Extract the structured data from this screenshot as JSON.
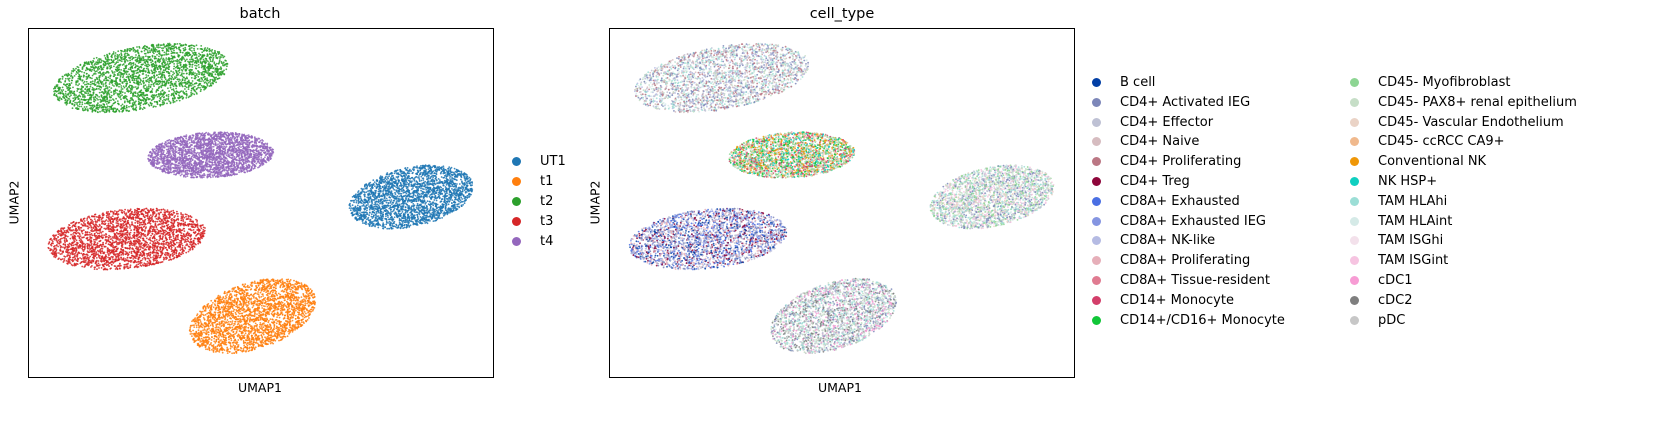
{
  "chart_data": [
    {
      "type": "scatter",
      "title": "batch",
      "xlabel": "UMAP1",
      "ylabel": "UMAP2",
      "grid": false,
      "legend_placement": "right",
      "legend": [
        {
          "label": "UT1",
          "color": "#1f77b4"
        },
        {
          "label": "t1",
          "color": "#ff7f0e"
        },
        {
          "label": "t2",
          "color": "#2ca02c"
        },
        {
          "label": "t3",
          "color": "#d62728"
        },
        {
          "label": "t4",
          "color": "#9467bd"
        }
      ],
      "clusters": [
        {
          "name": "t2",
          "color": "#2ca02c",
          "center": [
            0.24,
            0.14
          ],
          "radii": [
            0.19,
            0.09
          ],
          "angle": -10
        },
        {
          "name": "t4",
          "color": "#9467bd",
          "center": [
            0.39,
            0.36
          ],
          "radii": [
            0.135,
            0.065
          ],
          "angle": -3
        },
        {
          "name": "UT1",
          "color": "#1f77b4",
          "center": [
            0.82,
            0.48
          ],
          "radii": [
            0.135,
            0.085
          ],
          "angle": -12
        },
        {
          "name": "t3",
          "color": "#d62728",
          "center": [
            0.21,
            0.6
          ],
          "radii": [
            0.17,
            0.085
          ],
          "angle": -6
        },
        {
          "name": "t1",
          "color": "#ff7f0e",
          "center": [
            0.48,
            0.82
          ],
          "radii": [
            0.14,
            0.095
          ],
          "angle": -18
        }
      ]
    },
    {
      "type": "scatter",
      "title": "cell_type",
      "xlabel": "UMAP1",
      "ylabel": "UMAP2",
      "grid": false,
      "legend_placement": "right",
      "legend": [
        {
          "label": "B cell",
          "color": "#023fa5"
        },
        {
          "label": "CD4+ Activated IEG",
          "color": "#7d87b9"
        },
        {
          "label": "CD4+ Effector",
          "color": "#bec1d4"
        },
        {
          "label": "CD4+ Naive",
          "color": "#d6bcc0"
        },
        {
          "label": "CD4+ Proliferating",
          "color": "#bb7784"
        },
        {
          "label": "CD4+ Treg",
          "color": "#8e063b"
        },
        {
          "label": "CD8A+ Exhausted",
          "color": "#4a6fe3"
        },
        {
          "label": "CD8A+ Exhausted IEG",
          "color": "#8595e1"
        },
        {
          "label": "CD8A+ NK-like",
          "color": "#b5bbe3"
        },
        {
          "label": "CD8A+ Proliferating",
          "color": "#e6afb9"
        },
        {
          "label": "CD8A+ Tissue-resident",
          "color": "#e07b91"
        },
        {
          "label": "CD14+ Monocyte",
          "color": "#d33f6a"
        },
        {
          "label": "CD14+/CD16+ Monocyte",
          "color": "#11c638"
        },
        {
          "label": "CD45- Myofibroblast",
          "color": "#8dd593"
        },
        {
          "label": "CD45- PAX8+ renal epithelium",
          "color": "#c6dec7"
        },
        {
          "label": "CD45- Vascular Endothelium",
          "color": "#ead3c6"
        },
        {
          "label": "CD45- ccRCC CA9+",
          "color": "#f0b98d"
        },
        {
          "label": "Conventional NK",
          "color": "#ef9708"
        },
        {
          "label": "NK HSP+",
          "color": "#0fcfc0"
        },
        {
          "label": "TAM HLAhi",
          "color": "#9cded6"
        },
        {
          "label": "TAM HLAint",
          "color": "#d5eae7"
        },
        {
          "label": "TAM ISGhi",
          "color": "#f3e1eb"
        },
        {
          "label": "TAM ISGint",
          "color": "#f6c4e1"
        },
        {
          "label": "cDC1",
          "color": "#f79cd4"
        },
        {
          "label": "cDC2",
          "color": "#7f7f7f"
        },
        {
          "label": "pDC",
          "color": "#c7c7c7"
        }
      ],
      "clusters": [
        {
          "name": "cluster-top-left",
          "center": [
            0.24,
            0.14
          ],
          "radii": [
            0.19,
            0.09
          ],
          "angle": -10,
          "colors": [
            "#9cded6",
            "#d5eae7",
            "#bec1d4",
            "#7d87b9",
            "#bb7784",
            "#c6dec7",
            "#b5bbe3",
            "#d6bcc0"
          ]
        },
        {
          "name": "cluster-mid",
          "center": [
            0.39,
            0.36
          ],
          "radii": [
            0.135,
            0.065
          ],
          "angle": -3,
          "colors": [
            "#ef9708",
            "#8dd593",
            "#f0b98d",
            "#11c638",
            "#d33f6a",
            "#c6dec7",
            "#ead3c6",
            "#0fcfc0"
          ]
        },
        {
          "name": "cluster-right",
          "center": [
            0.82,
            0.48
          ],
          "radii": [
            0.135,
            0.085
          ],
          "angle": -12,
          "colors": [
            "#c6dec7",
            "#9cded6",
            "#8dd593",
            "#7d87b9",
            "#ead3c6",
            "#d5eae7",
            "#f6c4e1",
            "#bec1d4"
          ]
        },
        {
          "name": "cluster-left",
          "center": [
            0.21,
            0.6
          ],
          "radii": [
            0.17,
            0.085
          ],
          "angle": -6,
          "colors": [
            "#4a6fe3",
            "#8595e1",
            "#b5bbe3",
            "#7d87b9",
            "#023fa5",
            "#e6afb9",
            "#bec1d4",
            "#8e063b"
          ]
        },
        {
          "name": "cluster-bottom",
          "center": [
            0.48,
            0.82
          ],
          "radii": [
            0.14,
            0.095
          ],
          "angle": -18,
          "colors": [
            "#9cded6",
            "#7f7f7f",
            "#bec1d4",
            "#c6dec7",
            "#f79cd4",
            "#7d87b9",
            "#d5eae7",
            "#c7c7c7"
          ]
        }
      ]
    }
  ]
}
